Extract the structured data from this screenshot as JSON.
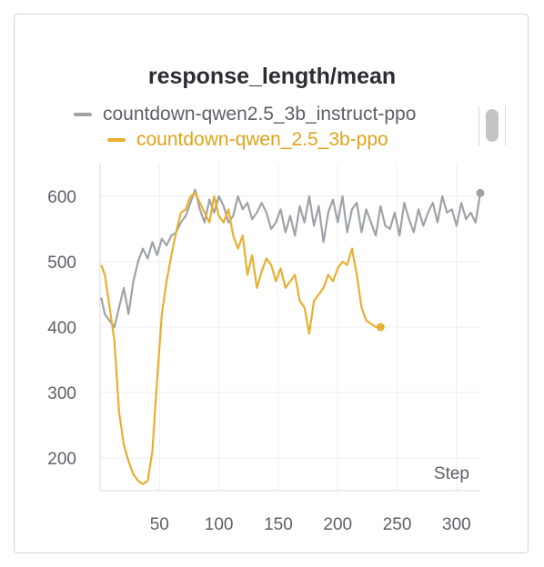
{
  "chart_data": {
    "type": "line",
    "title": "response_length/mean",
    "xlabel": "Step",
    "ylabel": "",
    "xlim": [
      0,
      320
    ],
    "ylim": [
      150,
      650
    ],
    "x_ticks": [
      50,
      100,
      150,
      200,
      250,
      300
    ],
    "y_ticks": [
      200,
      300,
      400,
      500,
      600
    ],
    "grid": true,
    "legend_position": "top",
    "series": [
      {
        "name": "countdown-qwen2.5_3b_instruct-ppo",
        "color": "#9ea3a8",
        "x": [
          1,
          4,
          8,
          12,
          16,
          20,
          24,
          28,
          32,
          36,
          40,
          44,
          48,
          52,
          56,
          60,
          64,
          68,
          72,
          76,
          80,
          84,
          88,
          92,
          96,
          100,
          104,
          108,
          112,
          116,
          120,
          124,
          128,
          132,
          136,
          140,
          144,
          148,
          152,
          156,
          160,
          164,
          168,
          172,
          176,
          180,
          184,
          188,
          192,
          196,
          200,
          204,
          208,
          212,
          216,
          220,
          224,
          228,
          232,
          236,
          240,
          244,
          248,
          252,
          256,
          260,
          264,
          268,
          272,
          276,
          280,
          284,
          288,
          292,
          296,
          300,
          304,
          308,
          312,
          316,
          320
        ],
        "values": [
          445,
          420,
          410,
          400,
          430,
          460,
          420,
          470,
          500,
          520,
          505,
          530,
          510,
          535,
          525,
          540,
          545,
          560,
          570,
          590,
          610,
          580,
          560,
          595,
          575,
          600,
          585,
          560,
          570,
          600,
          580,
          590,
          565,
          575,
          590,
          575,
          550,
          560,
          580,
          545,
          570,
          540,
          585,
          560,
          600,
          555,
          585,
          530,
          575,
          595,
          560,
          600,
          545,
          580,
          590,
          545,
          580,
          560,
          540,
          585,
          555,
          550,
          575,
          540,
          590,
          565,
          545,
          580,
          555,
          575,
          590,
          560,
          600,
          575,
          580,
          555,
          590,
          565,
          575,
          560,
          605
        ]
      },
      {
        "name": "countdown-qwen_2.5_3b-ppo",
        "color": "#e8b030",
        "x": [
          1,
          4,
          8,
          12,
          16,
          20,
          24,
          28,
          32,
          36,
          40,
          44,
          48,
          52,
          56,
          60,
          64,
          68,
          72,
          76,
          80,
          84,
          88,
          92,
          96,
          100,
          104,
          108,
          112,
          116,
          120,
          124,
          128,
          132,
          136,
          140,
          144,
          148,
          152,
          156,
          160,
          164,
          168,
          172,
          176,
          180,
          184,
          188,
          192,
          196,
          200,
          204,
          208,
          212,
          216,
          220,
          224,
          228,
          232,
          236
        ],
        "values": [
          495,
          480,
          430,
          380,
          270,
          220,
          195,
          175,
          165,
          160,
          165,
          210,
          320,
          420,
          470,
          510,
          545,
          575,
          580,
          600,
          605,
          590,
          575,
          560,
          600,
          570,
          560,
          580,
          540,
          520,
          540,
          480,
          510,
          460,
          485,
          505,
          495,
          470,
          490,
          460,
          470,
          480,
          440,
          430,
          390,
          440,
          450,
          460,
          480,
          470,
          490,
          500,
          495,
          520,
          480,
          430,
          410,
          405,
          400,
          400
        ]
      }
    ]
  }
}
